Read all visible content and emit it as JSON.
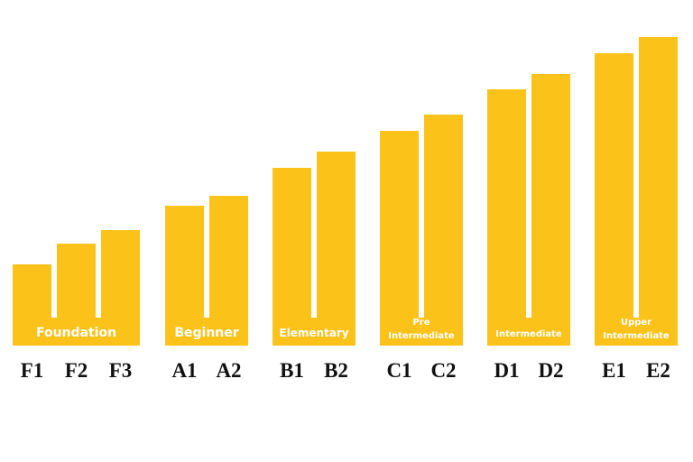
{
  "groups": [
    {
      "label": [
        "Foundation"
      ],
      "bars": [
        "F1",
        "F2",
        "F3"
      ]
    },
    {
      "label": [
        "Beginner"
      ],
      "bars": [
        "A1",
        "A2"
      ]
    },
    {
      "label": [
        "Elementary"
      ],
      "bars": [
        "B1",
        "B2"
      ]
    },
    {
      "label": [
        "Pre",
        "Intermediate"
      ],
      "bars": [
        "C1",
        "C2"
      ]
    },
    {
      "label": [
        "Intermediate"
      ],
      "bars": [
        "D1",
        "D2"
      ]
    },
    {
      "label": [
        "Upper",
        "Intermediate"
      ],
      "bars": [
        "E1",
        "E2"
      ]
    }
  ]
}
